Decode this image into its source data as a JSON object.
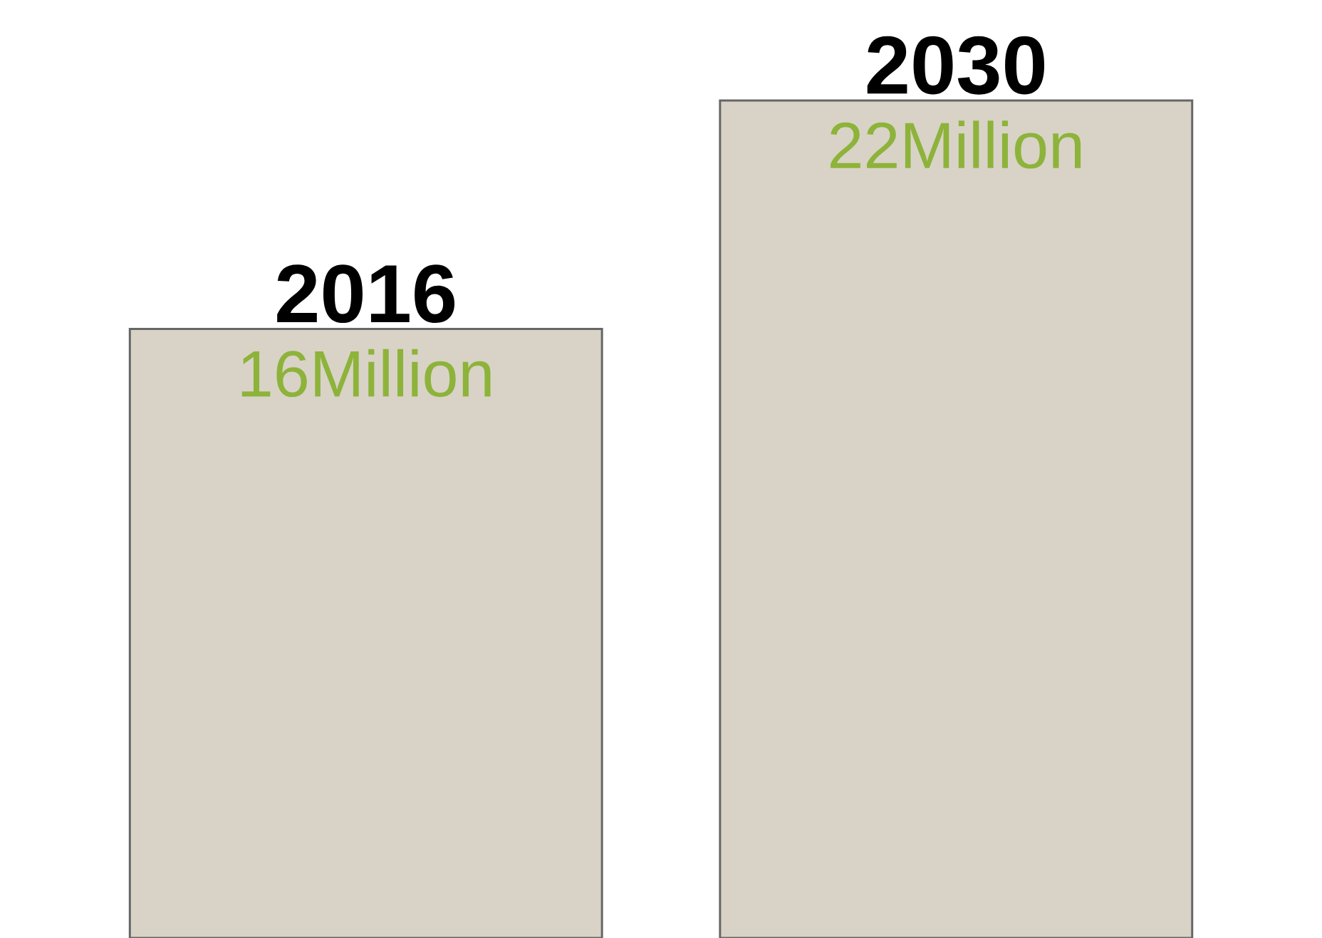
{
  "chart_data": {
    "type": "bar",
    "categories": [
      "2016",
      "2030"
    ],
    "values": [
      16,
      22
    ],
    "value_labels": [
      "16Million",
      "22Million"
    ],
    "color": "#d8d3c6"
  }
}
